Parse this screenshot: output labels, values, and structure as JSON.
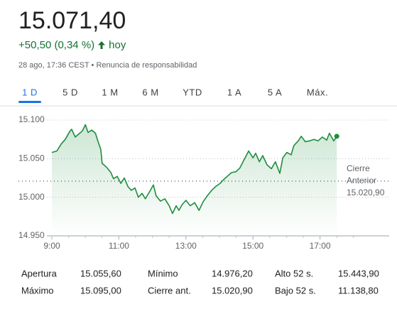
{
  "header": {
    "price": "15.071,40",
    "change": "+50,50 (0,34 %)",
    "period": "hoy",
    "timestamp": "28 ago, 17:36 CEST",
    "separator": "•",
    "disclaimer": "Renuncia de responsabilidad"
  },
  "tabs": {
    "items": [
      "1 D",
      "5 D",
      "1 M",
      "6 M",
      "YTD",
      "1 A",
      "5 A",
      "Máx."
    ],
    "selected": 0
  },
  "chart_data": {
    "type": "line",
    "color": "#1e8e3e",
    "x": [
      9.0,
      9.15,
      9.28,
      9.4,
      9.53,
      9.59,
      9.7,
      9.83,
      9.91,
      10.0,
      10.08,
      10.19,
      10.3,
      10.38,
      10.46,
      10.5,
      10.63,
      10.76,
      10.84,
      10.95,
      11.06,
      11.16,
      11.27,
      11.37,
      11.48,
      11.58,
      11.69,
      11.79,
      11.94,
      12.03,
      12.11,
      12.24,
      12.37,
      12.5,
      12.6,
      12.71,
      12.79,
      12.88,
      13.0,
      13.13,
      13.26,
      13.39,
      13.51,
      13.64,
      13.77,
      13.89,
      14.02,
      14.15,
      14.23,
      14.36,
      14.49,
      14.61,
      14.74,
      14.87,
      15.0,
      15.08,
      15.19,
      15.29,
      15.42,
      15.55,
      15.67,
      15.8,
      15.89,
      16.01,
      16.14,
      16.22,
      16.35,
      16.44,
      16.56,
      16.69,
      16.82,
      16.94,
      17.07,
      17.2,
      17.28,
      17.41,
      17.5
    ],
    "values": [
      15058,
      15060,
      15069,
      15075,
      15085,
      15088,
      15078,
      15083,
      15086,
      15094,
      15084,
      15087,
      15083,
      15072,
      15062,
      15044,
      15039,
      15032,
      15024,
      15027,
      15018,
      15025,
      15014,
      15009,
      15012,
      15000,
      15005,
      14998,
      15009,
      15016,
      15002,
      14995,
      14998,
      14989,
      14979,
      14989,
      14983,
      14990,
      14996,
      14989,
      14993,
      14983,
      14994,
      15002,
      15009,
      15014,
      15018,
      15024,
      15027,
      15032,
      15033,
      15038,
      15049,
      15060,
      15051,
      15057,
      15046,
      15054,
      15042,
      15037,
      15046,
      15031,
      15051,
      15058,
      15055,
      15067,
      15073,
      15079,
      15072,
      15073,
      15075,
      15073,
      15078,
      15074,
      15083,
      15073,
      15079
    ],
    "xlim": [
      9,
      19
    ],
    "xticks": [
      {
        "value": 9,
        "label": "9:00"
      },
      {
        "value": 11,
        "label": "11:00"
      },
      {
        "value": 13,
        "label": "13:00"
      },
      {
        "value": 15,
        "label": "15:00"
      },
      {
        "value": 17,
        "label": "17:00"
      }
    ],
    "ylim": [
      14950,
      15100
    ],
    "yticks": [
      {
        "value": 14950,
        "label": "14.950"
      },
      {
        "value": 15000,
        "label": "15.000"
      },
      {
        "value": 15050,
        "label": "15.050"
      },
      {
        "value": 15100,
        "label": "15.100"
      }
    ],
    "grid": true,
    "reference": {
      "text": [
        "Cierre",
        "Anterior"
      ],
      "value": 15020.9,
      "value_label": "15.020,90"
    }
  },
  "table": {
    "rows": [
      [
        "Apertura",
        "15.055,60",
        "Mínimo",
        "14.976,20",
        "Alto 52 s.",
        "15.443,90"
      ],
      [
        "Máximo",
        "15.095,00",
        "Cierre ant.",
        "15.020,90",
        "Bajo 52 s.",
        "11.138,80"
      ]
    ]
  }
}
